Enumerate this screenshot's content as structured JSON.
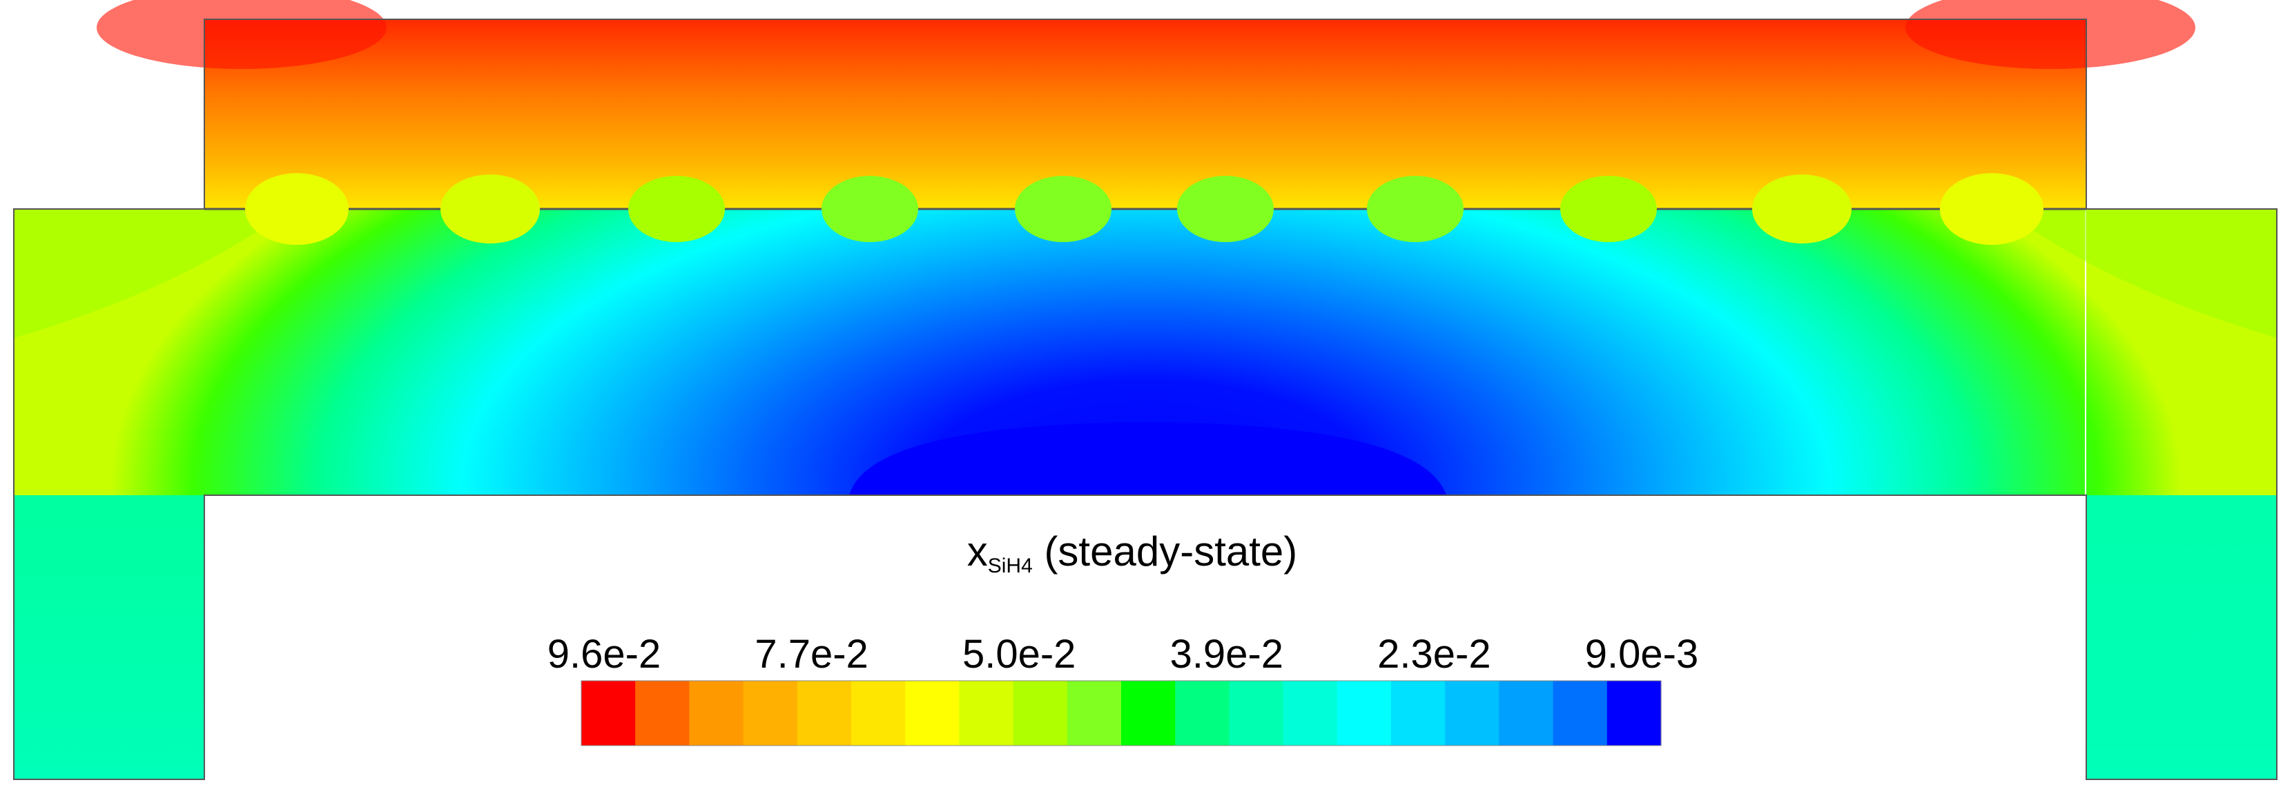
{
  "legend": {
    "title_main": "x",
    "title_sub": "SiH4",
    "title_suffix": "(steady-state)",
    "tick_labels": [
      "9.6e-2",
      "7.7e-2",
      "5.0e-2",
      "3.9e-2",
      "2.3e-2",
      "9.0e-3"
    ],
    "colors": [
      "#ff0000",
      "#ff6600",
      "#ff9900",
      "#ffb000",
      "#ffcc00",
      "#ffe600",
      "#ffff00",
      "#d8ff00",
      "#b0ff00",
      "#80ff20",
      "#00ff00",
      "#00ff80",
      "#00ffb0",
      "#00ffd8",
      "#00ffff",
      "#00e0ff",
      "#00c0ff",
      "#00a0ff",
      "#0070ff",
      "#0000ff"
    ]
  },
  "field": {
    "quantity": "x_SiH4",
    "max": 0.096,
    "min": 0.009
  }
}
